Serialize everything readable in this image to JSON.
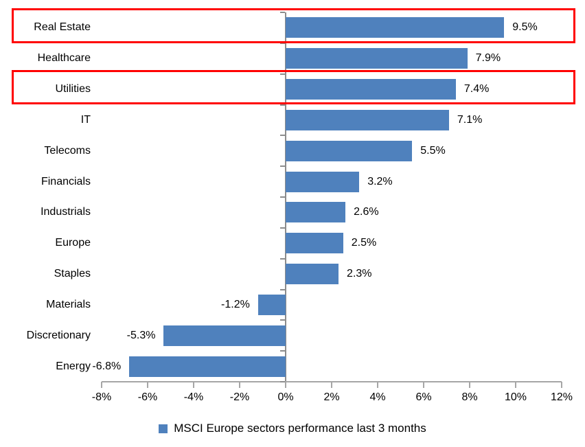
{
  "chart_data": {
    "type": "bar",
    "orientation": "horizontal",
    "title": "",
    "legend": "MSCI Europe sectors performance last 3 months",
    "legend_position": "bottom-center",
    "grid": false,
    "categories": [
      "Real Estate",
      "Healthcare",
      "Utilities",
      "IT",
      "Telecoms",
      "Financials",
      "Industrials",
      "Europe",
      "Staples",
      "Materials",
      "Discretionary",
      "Energy"
    ],
    "values": [
      9.5,
      7.9,
      7.4,
      7.1,
      5.5,
      3.2,
      2.6,
      2.5,
      2.3,
      -1.2,
      -5.3,
      -6.8
    ],
    "value_labels": [
      "9.5%",
      "7.9%",
      "7.4%",
      "7.1%",
      "5.5%",
      "3.2%",
      "2.6%",
      "2.5%",
      "2.3%",
      "-1.2%",
      "-5.3%",
      "-6.8%"
    ],
    "xlim": [
      -8,
      12
    ],
    "xtick_step": 2,
    "xticks": [
      {
        "value": -8,
        "label": "-8%"
      },
      {
        "value": -6,
        "label": "-6%"
      },
      {
        "value": -4,
        "label": "-4%"
      },
      {
        "value": -2,
        "label": "-2%"
      },
      {
        "value": 0,
        "label": "0%"
      },
      {
        "value": 2,
        "label": "2%"
      },
      {
        "value": 4,
        "label": "4%"
      },
      {
        "value": 6,
        "label": "6%"
      },
      {
        "value": 8,
        "label": "8%"
      },
      {
        "value": 10,
        "label": "10%"
      },
      {
        "value": 12,
        "label": "12%"
      }
    ],
    "bar_color": "#4F81BD",
    "axis_color": "#8C8C8C",
    "highlight_color": "#FF0000",
    "highlighted_categories": [
      "Real Estate",
      "Utilities"
    ]
  }
}
